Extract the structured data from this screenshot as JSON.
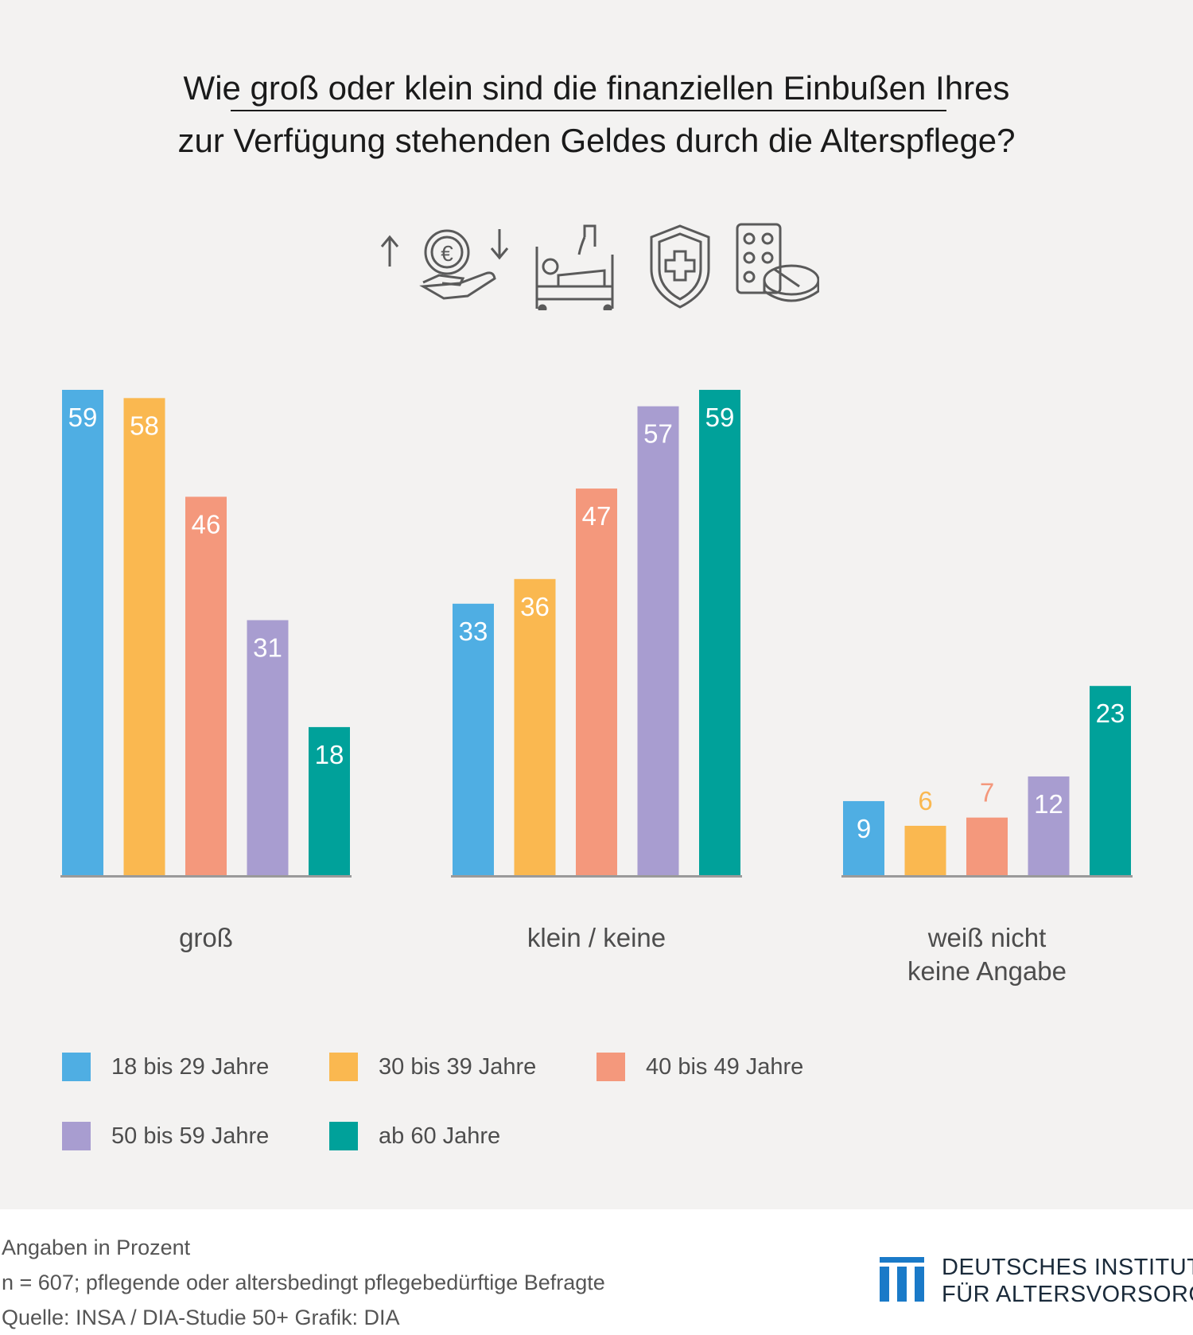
{
  "title": {
    "line1": "Wie groß oder klein sind die finanziellen Einbußen Ihres",
    "line2": "zur Verfügung stehenden Geldes durch die Alterspflege?"
  },
  "icons": [
    "euro-hand-icon",
    "hospital-bed-icon",
    "medical-shield-icon",
    "pills-icon"
  ],
  "chart_data": {
    "type": "bar",
    "title": "Wie groß oder klein sind die finanziellen Einbußen Ihres zur Verfügung stehenden Geldes durch die Alterspflege?",
    "categories": [
      "groß",
      "klein / keine",
      "weiß nicht\nkeine Angabe"
    ],
    "category_lines": [
      [
        "groß"
      ],
      [
        "klein / keine"
      ],
      [
        "weiß nicht",
        "keine Angabe"
      ]
    ],
    "series": [
      {
        "name": "18 bis 29 Jahre",
        "color": "#4faee3",
        "values": [
          59,
          33,
          9
        ]
      },
      {
        "name": "30 bis 39 Jahre",
        "color": "#fab850",
        "values": [
          58,
          36,
          6
        ]
      },
      {
        "name": "40 bis 49 Jahre",
        "color": "#f4987c",
        "values": [
          46,
          47,
          7
        ]
      },
      {
        "name": "50 bis 59 Jahre",
        "color": "#a89dd0",
        "values": [
          31,
          57,
          12
        ]
      },
      {
        "name": "ab 60 Jahre",
        "color": "#00a19a",
        "values": [
          18,
          59,
          23
        ]
      }
    ],
    "ylim": [
      0,
      59
    ],
    "grid": false,
    "legend_position": "bottom",
    "xlabel": "",
    "ylabel": ""
  },
  "footer": {
    "unit_note": "Angaben in Prozent",
    "sample_note": "n = 607; pflegende oder altersbedingt pflegebedürftige Befragte",
    "source_note": "Quelle: INSA / DIA-Studie 50+  Grafik: DIA"
  },
  "logo": {
    "line1": "DEUTSCHES INSTITUT",
    "line2": "FÜR ALTERSVORSORGE",
    "color": "#1a7ac8"
  }
}
